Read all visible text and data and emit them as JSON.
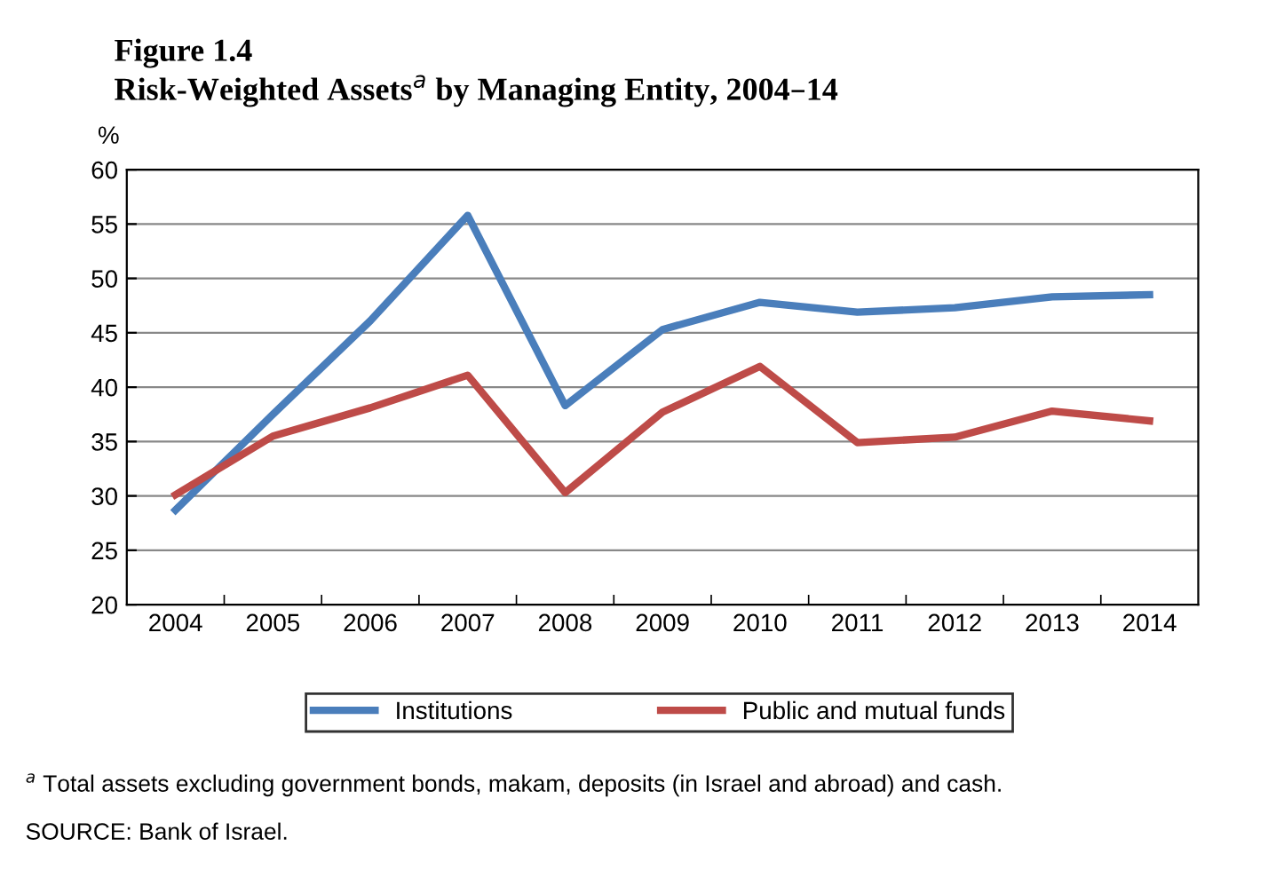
{
  "chart_data": {
    "type": "line",
    "title": "Figure 1.4",
    "subtitle": "Risk-Weighted Assets$^{a}$ by Managing Entity, 2004–14",
    "ylabel": "%",
    "categories": [
      "2004",
      "2005",
      "2006",
      "2007",
      "2008",
      "2009",
      "2010",
      "2011",
      "2012",
      "2013",
      "2014"
    ],
    "series": [
      {
        "name": "Institutions",
        "color": "#4a7ebb",
        "values": [
          28.7,
          37.5,
          46.1,
          55.8,
          38.3,
          45.3,
          47.8,
          46.9,
          47.3,
          48.3,
          48.5
        ]
      },
      {
        "name": "Public and mutual funds",
        "color": "#be4b48",
        "values": [
          30.1,
          35.5,
          38.1,
          41.1,
          30.3,
          37.7,
          41.9,
          34.9,
          35.4,
          37.8,
          36.9
        ]
      }
    ],
    "ylim": [
      20,
      60
    ],
    "yticks": [
      20,
      25,
      30,
      35,
      40,
      45,
      50,
      55,
      60
    ],
    "grid": "y",
    "legend": "bottom",
    "marker": "none",
    "line_style": "solid",
    "annotations": [
      "$^{a}$ Total assets excluding government bonds, makam, deposits (in Israel and abroad) and cash.",
      "SOURCE: Bank of Israel."
    ]
  }
}
